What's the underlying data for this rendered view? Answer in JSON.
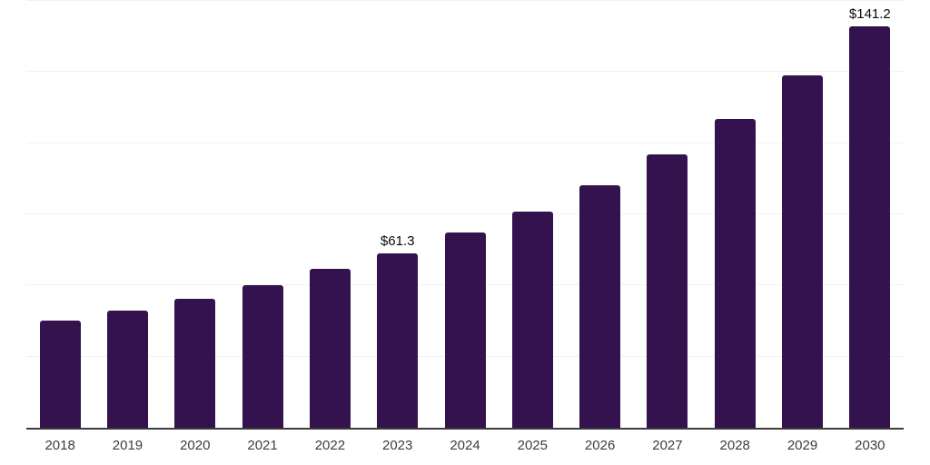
{
  "chart": {
    "bar_color": "#34124E",
    "axis_color": "#3d3d3d",
    "grid_color": "#f2f2f2",
    "tick_label_color": "#3d3d3d",
    "value_label_color": "#0a0a0a",
    "background_color": "#ffffff"
  },
  "chart_data": {
    "type": "bar",
    "title": "",
    "xlabel": "",
    "ylabel": "",
    "categories": [
      "2018",
      "2019",
      "2020",
      "2021",
      "2022",
      "2023",
      "2024",
      "2025",
      "2026",
      "2027",
      "2028",
      "2029",
      "2030"
    ],
    "values": [
      37.7,
      41.1,
      45.2,
      50.1,
      55.9,
      61.3,
      68.5,
      76.0,
      85.2,
      96.0,
      108.5,
      123.8,
      141.2
    ],
    "data_labels": {
      "2023": "$61.3",
      "2030": "$141.2"
    },
    "ylim": [
      0,
      150
    ],
    "gridline_interval": 25,
    "grid": true,
    "legend": false,
    "y_axis_ticks_visible": false
  }
}
